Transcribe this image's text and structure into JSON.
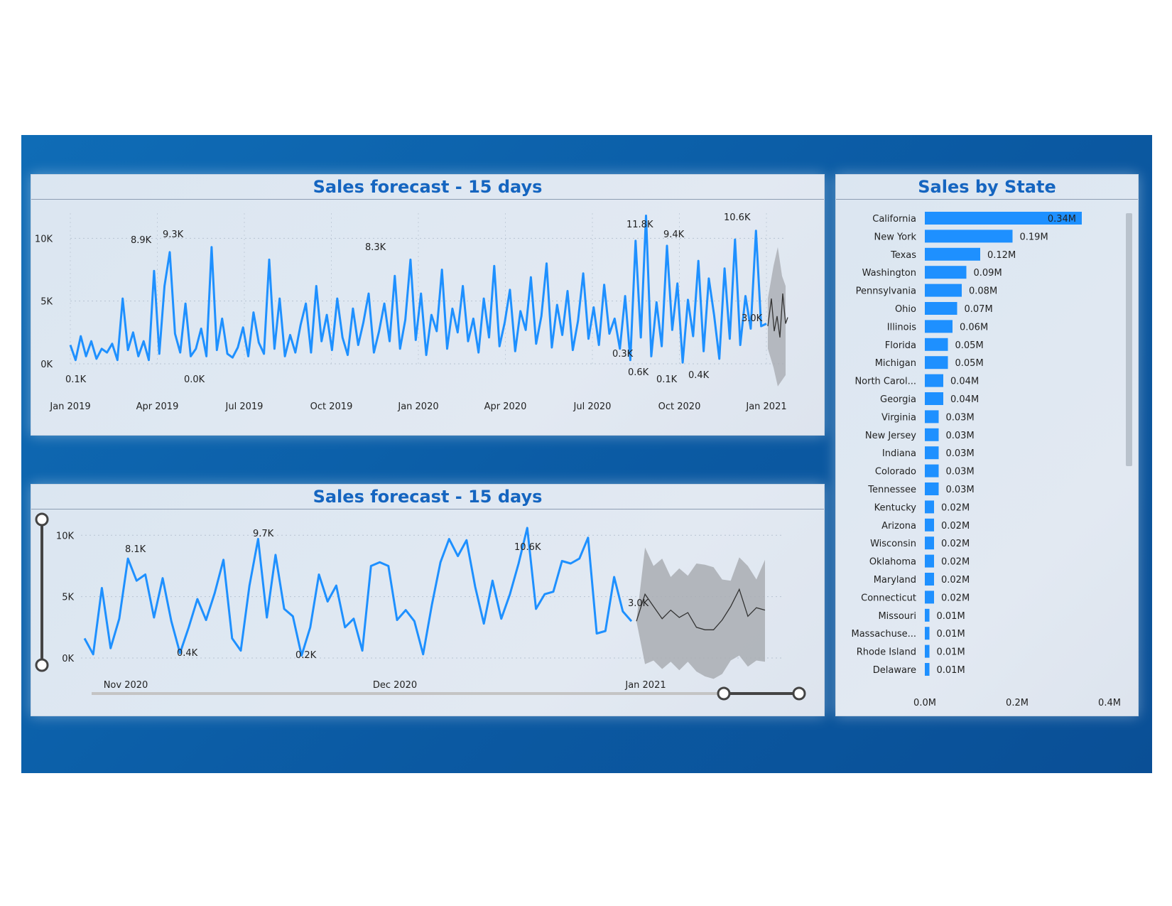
{
  "top_panel": {
    "title": "Sales forecast - 15 days"
  },
  "bottom_panel": {
    "title": "Sales forecast - 15 days"
  },
  "state_panel": {
    "title": "Sales by State"
  },
  "colors": {
    "series": "#1e90ff",
    "forecast_band": "#a9adb3",
    "forecast_line": "#333333",
    "title": "#1565c0"
  },
  "chart_data": [
    {
      "type": "line",
      "title": "Sales forecast - 15 days",
      "y_ticks": [
        "0K",
        "5K",
        "10K"
      ],
      "ylim": [
        0,
        12000
      ],
      "x_ticks": [
        "Jan 2019",
        "Apr 2019",
        "Jul 2019",
        "Oct 2019",
        "Jan 2020",
        "Apr 2020",
        "Jul 2020",
        "Oct 2020",
        "Jan 2021"
      ],
      "data_labels": [
        "8.9K",
        "9.3K",
        "0.1K",
        "0.0K",
        "8.3K",
        "11.8K",
        "9.4K",
        "10.6K",
        "0.3K",
        "0.6K",
        "0.1K",
        "0.4K",
        "3.0K"
      ],
      "series": [
        {
          "values": [
            1500,
            300,
            2200,
            600,
            1800,
            400,
            1200,
            900,
            1600,
            300,
            5200,
            1100,
            2500,
            600,
            1800,
            300,
            7400,
            800,
            6200,
            8900,
            2400,
            900,
            4800,
            600,
            1200,
            2800,
            600,
            9300,
            1100,
            3600,
            800,
            500,
            1300,
            2900,
            600,
            4100,
            1700,
            800,
            8300,
            1200,
            5200,
            600,
            2300,
            900,
            3100,
            4800,
            900,
            6200,
            1800,
            3900,
            1100,
            5200,
            2100,
            700,
            4400,
            1500,
            3300,
            5600,
            900,
            2600,
            4800,
            1800,
            7000,
            1200,
            3500,
            8300,
            1900,
            5600,
            700,
            3900,
            2600,
            7500,
            1200,
            4400,
            2500,
            6200,
            1800,
            3600,
            900,
            5200,
            2100,
            7800,
            1400,
            3300,
            5900,
            1000,
            4200,
            2700,
            6900,
            1600,
            3800,
            8000,
            1300,
            4700,
            2300,
            5800,
            1100,
            3400,
            7200,
            2000,
            4500,
            1500,
            6300,
            2400,
            3600,
            1200,
            5400,
            300,
            9800,
            2100,
            11800,
            600,
            4900,
            1400,
            9400,
            2700,
            6400,
            100,
            5100,
            2200,
            8200,
            1000,
            6800,
            3900,
            400,
            7600,
            2000,
            9900,
            1500,
            5400,
            2800,
            10600,
            3000,
            3200
          ]
        }
      ]
    },
    {
      "type": "line",
      "title": "Sales forecast - 15 days",
      "y_ticks": [
        "0K",
        "5K",
        "10K"
      ],
      "ylim": [
        0,
        11000
      ],
      "x_ticks": [
        "Nov 2020",
        "Dec 2020",
        "Jan 2021"
      ],
      "data_labels": [
        "8.1K",
        "9.7K",
        "10.6K",
        "0.4K",
        "0.2K",
        "3.0K"
      ],
      "series": [
        {
          "name": "actual",
          "values": [
            1600,
            300,
            5700,
            800,
            3200,
            8100,
            6300,
            6800,
            3300,
            6500,
            3000,
            400,
            2500,
            4800,
            3100,
            5300,
            8000,
            1600,
            600,
            5900,
            9700,
            3300,
            8400,
            4000,
            3400,
            200,
            2500,
            6800,
            4600,
            5900,
            2500,
            3200,
            600,
            7500,
            7800,
            7500,
            3100,
            3900,
            3000,
            300,
            4300,
            7800,
            9700,
            8300,
            9600,
            5800,
            2800,
            6300,
            3200,
            5200,
            7700,
            10600,
            4000,
            5200,
            5400,
            7900,
            7700,
            8100,
            9800,
            2000,
            2200,
            6600,
            3800,
            3000
          ]
        },
        {
          "name": "forecast",
          "values": [
            3000,
            5200,
            4200,
            3200,
            3900,
            3300,
            3700,
            2500,
            2300,
            2300,
            3100,
            4200,
            5600,
            3400,
            4100,
            3900
          ]
        }
      ]
    },
    {
      "type": "bar",
      "title": "Sales by State",
      "categories": [
        "California",
        "New York",
        "Texas",
        "Washington",
        "Pennsylvania",
        "Ohio",
        "Illinois",
        "Florida",
        "Michigan",
        "North Carol...",
        "Georgia",
        "Virginia",
        "New Jersey",
        "Indiana",
        "Colorado",
        "Tennessee",
        "Kentucky",
        "Arizona",
        "Wisconsin",
        "Oklahoma",
        "Maryland",
        "Connecticut",
        "Missouri",
        "Massachuse...",
        "Rhode Island",
        "Delaware"
      ],
      "values": [
        0.34,
        0.19,
        0.12,
        0.09,
        0.08,
        0.07,
        0.06,
        0.05,
        0.05,
        0.04,
        0.04,
        0.03,
        0.03,
        0.03,
        0.03,
        0.03,
        0.02,
        0.02,
        0.02,
        0.02,
        0.02,
        0.02,
        0.01,
        0.01,
        0.01,
        0.01
      ],
      "value_labels": [
        "0.34M",
        "0.19M",
        "0.12M",
        "0.09M",
        "0.08M",
        "0.07M",
        "0.06M",
        "0.05M",
        "0.05M",
        "0.04M",
        "0.04M",
        "0.03M",
        "0.03M",
        "0.03M",
        "0.03M",
        "0.03M",
        "0.02M",
        "0.02M",
        "0.02M",
        "0.02M",
        "0.02M",
        "0.02M",
        "0.01M",
        "0.01M",
        "0.01M",
        "0.01M"
      ],
      "x_ticks": [
        "0.0M",
        "0.2M",
        "0.4M"
      ],
      "xlim": [
        0,
        0.4
      ]
    }
  ]
}
